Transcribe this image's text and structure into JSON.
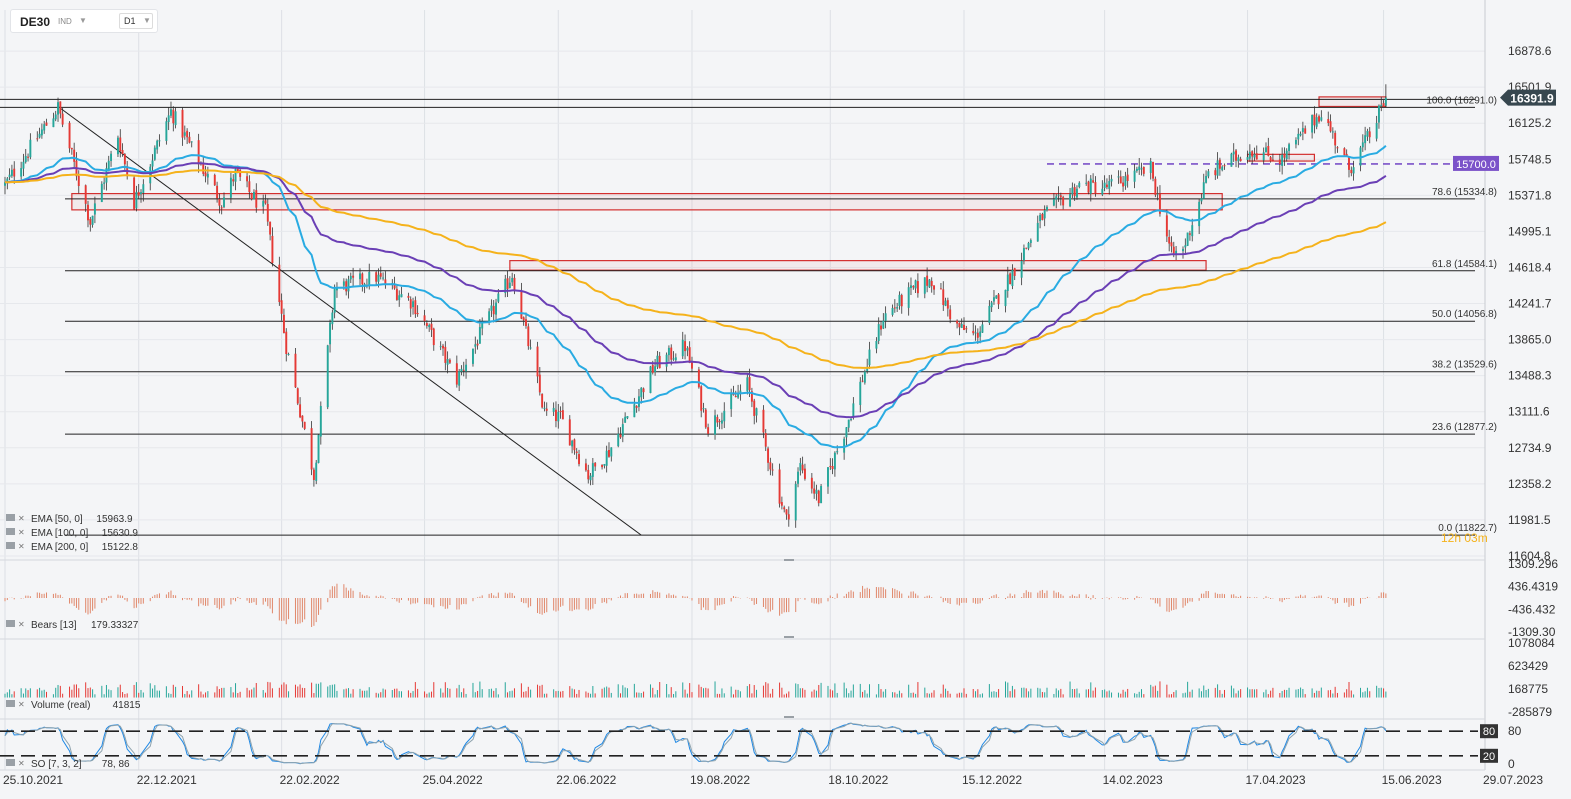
{
  "symbol": {
    "name": "DE30",
    "type": "IND",
    "timeframe": "D1"
  },
  "icons": {
    "dropdown": "chevron-down-icon",
    "legend_drag": "drag-handle-icon",
    "legend_remove": "close-icon"
  },
  "colors": {
    "bull": "#26a69a",
    "bear": "#e53935",
    "ema50": "#29abe2",
    "ema100": "#6a3fb5",
    "ema200": "#f5b21b",
    "resistance": "#7b52c9",
    "current_price_bg": "#37474f",
    "countdown": "#f5b21b"
  },
  "chart_data": [
    {
      "type": "candlestick",
      "pane": "price",
      "ylim": [
        11604.8,
        17255.4
      ],
      "yticks": [
        "16878.6",
        "16501.9",
        "16125.2",
        "15748.5",
        "15371.8",
        "14995.1",
        "14618.4",
        "14241.7",
        "13865.0",
        "13488.3",
        "13111.6",
        "12734.9",
        "12358.2",
        "11981.5",
        "11604.8"
      ],
      "xticks": [
        "25.10.2021",
        "22.12.2021",
        "22.02.2022",
        "25.04.2022",
        "22.06.2022",
        "19.08.2022",
        "18.10.2022",
        "15.12.2022",
        "14.02.2023",
        "17.04.2023",
        "15.06.2023",
        "29.07.2023"
      ],
      "x_range": [
        "25.10.2021",
        "29.07.2023"
      ],
      "current_price": "16391.9",
      "countdown": "12h 03m",
      "anchors": [
        [
          "2021-10-25",
          15480
        ],
        [
          "2021-11-17",
          16290
        ],
        [
          "2021-12-01",
          15100
        ],
        [
          "2021-12-13",
          16000
        ],
        [
          "2021-12-20",
          15300
        ],
        [
          "2022-01-05",
          16250
        ],
        [
          "2022-01-27",
          15300
        ],
        [
          "2022-02-02",
          15600
        ],
        [
          "2022-02-08",
          15400
        ],
        [
          "2022-02-15",
          15200
        ],
        [
          "2022-02-24",
          13800
        ],
        [
          "2022-03-08",
          12450
        ],
        [
          "2022-03-17",
          14400
        ],
        [
          "2022-04-04",
          14520
        ],
        [
          "2022-04-20",
          14250
        ],
        [
          "2022-05-09",
          13450
        ],
        [
          "2022-06-02",
          14550
        ],
        [
          "2022-06-16",
          13100
        ],
        [
          "2022-06-23",
          13050
        ],
        [
          "2022-07-05",
          12450
        ],
        [
          "2022-07-14",
          12700
        ],
        [
          "2022-08-03",
          13600
        ],
        [
          "2022-08-16",
          13800
        ],
        [
          "2022-08-26",
          12950
        ],
        [
          "2022-09-12",
          13400
        ],
        [
          "2022-09-29",
          11980
        ],
        [
          "2022-10-05",
          12550
        ],
        [
          "2022-10-13",
          12200
        ],
        [
          "2022-10-24",
          12900
        ],
        [
          "2022-11-10",
          14100
        ],
        [
          "2022-11-24",
          14400
        ],
        [
          "2022-12-01",
          14500
        ],
        [
          "2022-12-12",
          14000
        ],
        [
          "2022-12-20",
          13900
        ],
        [
          "2023-01-06",
          14610
        ],
        [
          "2023-01-18",
          15150
        ],
        [
          "2023-02-03",
          15480
        ],
        [
          "2023-02-14",
          15450
        ],
        [
          "2023-03-06",
          15650
        ],
        [
          "2023-03-15",
          14750
        ],
        [
          "2023-03-20",
          14800
        ],
        [
          "2023-03-31",
          15600
        ],
        [
          "2023-04-18",
          15850
        ],
        [
          "2023-05-02",
          15750
        ],
        [
          "2023-05-19",
          16250
        ],
        [
          "2023-05-31",
          15650
        ],
        [
          "2023-06-09",
          16000
        ],
        [
          "2023-06-16",
          16391.9
        ]
      ],
      "indicators": [
        {
          "name": "EMA [50, 0]",
          "value": "15963.9",
          "period": 50
        },
        {
          "name": "EMA [100, 0]",
          "value": "15630.9",
          "period": 100
        },
        {
          "name": "EMA [200, 0]",
          "value": "15122.8",
          "period": 200
        }
      ],
      "fibonacci": [
        {
          "label": "100.0 (16291.0)",
          "value": 16291.0
        },
        {
          "label": "78.6 (15334.8)",
          "value": 15334.8
        },
        {
          "label": "61.8 (14584.1)",
          "value": 14584.1
        },
        {
          "label": "50.0 (14056.8)",
          "value": 14056.8
        },
        {
          "label": "38.2 (13529.6)",
          "value": 13529.6
        },
        {
          "label": "23.6 (12877.2)",
          "value": 12877.2
        },
        {
          "label": "0.0 (11822.7)",
          "value": 11822.7
        }
      ],
      "resistance": {
        "label": "15700.0",
        "value": 15700.0
      },
      "zones": [
        {
          "from": "2021-11-23",
          "to": "2023-04-06",
          "low": 15220,
          "high": 15390
        },
        {
          "from": "2022-06-01",
          "to": "2023-03-30",
          "low": 14590,
          "high": 14690
        },
        {
          "from": "2023-05-18",
          "to": "2023-06-16",
          "low": 16300,
          "high": 16400
        },
        {
          "from": "2023-04-17",
          "to": "2023-05-16",
          "low": 15730,
          "high": 15800
        }
      ],
      "trendline": {
        "from": [
          "2021-11-17",
          16300
        ],
        "to": [
          "2022-07-28",
          11822.7
        ]
      }
    },
    {
      "type": "bar",
      "pane": "bears",
      "indicator": {
        "name": "Bears [13]",
        "value": "179.33327"
      },
      "yticks": [
        "1309.296",
        "436.4319",
        "-436.432",
        "-1309.30"
      ],
      "ylim": [
        -1309.3,
        1309.3
      ]
    },
    {
      "type": "bar",
      "pane": "volume",
      "indicator": {
        "name": "Volume  (real)",
        "value": "41815"
      },
      "yticks": [
        "1078084",
        "623429",
        "168775",
        "-285879"
      ],
      "ylim": [
        -285879,
        1078084
      ]
    },
    {
      "type": "line",
      "pane": "stochastic",
      "indicator": {
        "name": "SO [7, 3, 2]",
        "value": "78, 86"
      },
      "yticks": [
        "80",
        "0"
      ],
      "levels": [
        {
          "label": "80",
          "value": 80
        },
        {
          "label": "20",
          "value": 20
        }
      ],
      "ylim": [
        0,
        100
      ]
    }
  ]
}
